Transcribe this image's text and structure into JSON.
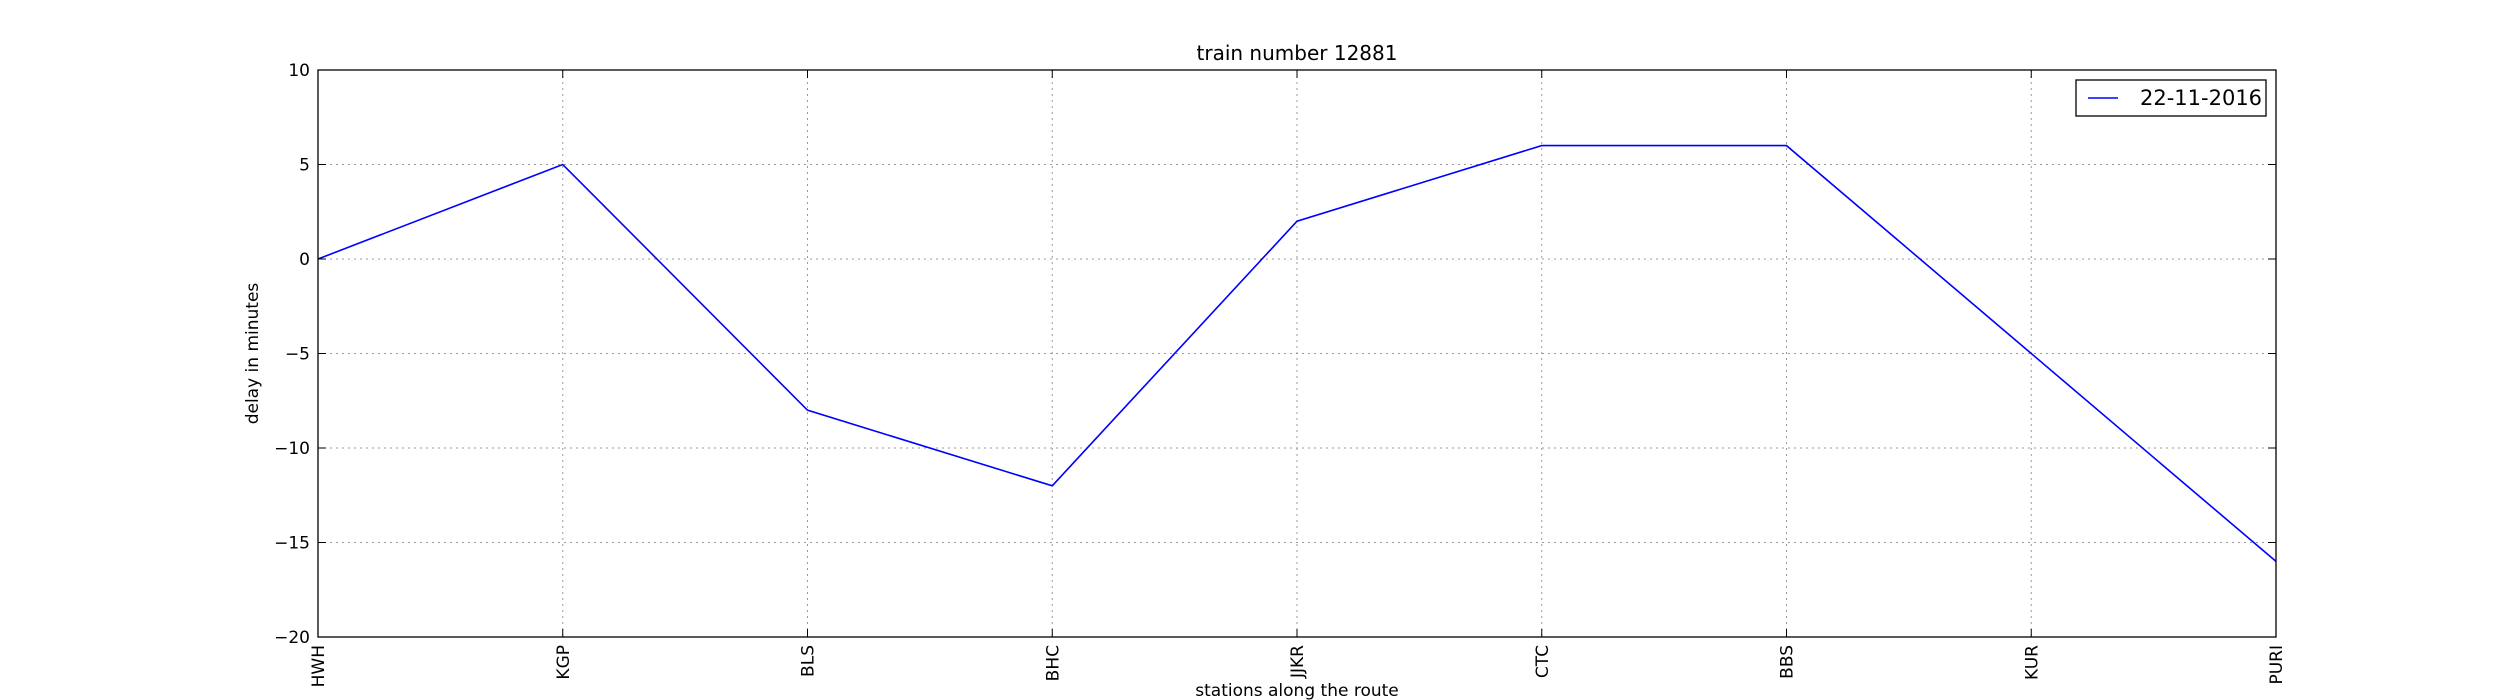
{
  "chart_data": {
    "type": "line",
    "title": "train number 12881",
    "xlabel": "stations along the route",
    "ylabel": "delay in minutes",
    "categories": [
      "HWH",
      "KGP",
      "BLS",
      "BHC",
      "JJKR",
      "CTC",
      "BBS",
      "KUR",
      "PURI"
    ],
    "series": [
      {
        "name": "22-11-2016",
        "values": [
          0,
          5,
          -8,
          -12,
          2,
          6,
          6,
          -5,
          -16
        ],
        "color": "#0000ff"
      }
    ],
    "ylim": [
      -20,
      10
    ],
    "yticks": [
      10,
      5,
      0,
      -5,
      -10,
      -15,
      -20
    ],
    "ytick_labels": [
      "10",
      "5",
      "0",
      "−5",
      "−10",
      "−15",
      "−20"
    ],
    "grid": true,
    "legend_position": "top-right"
  }
}
